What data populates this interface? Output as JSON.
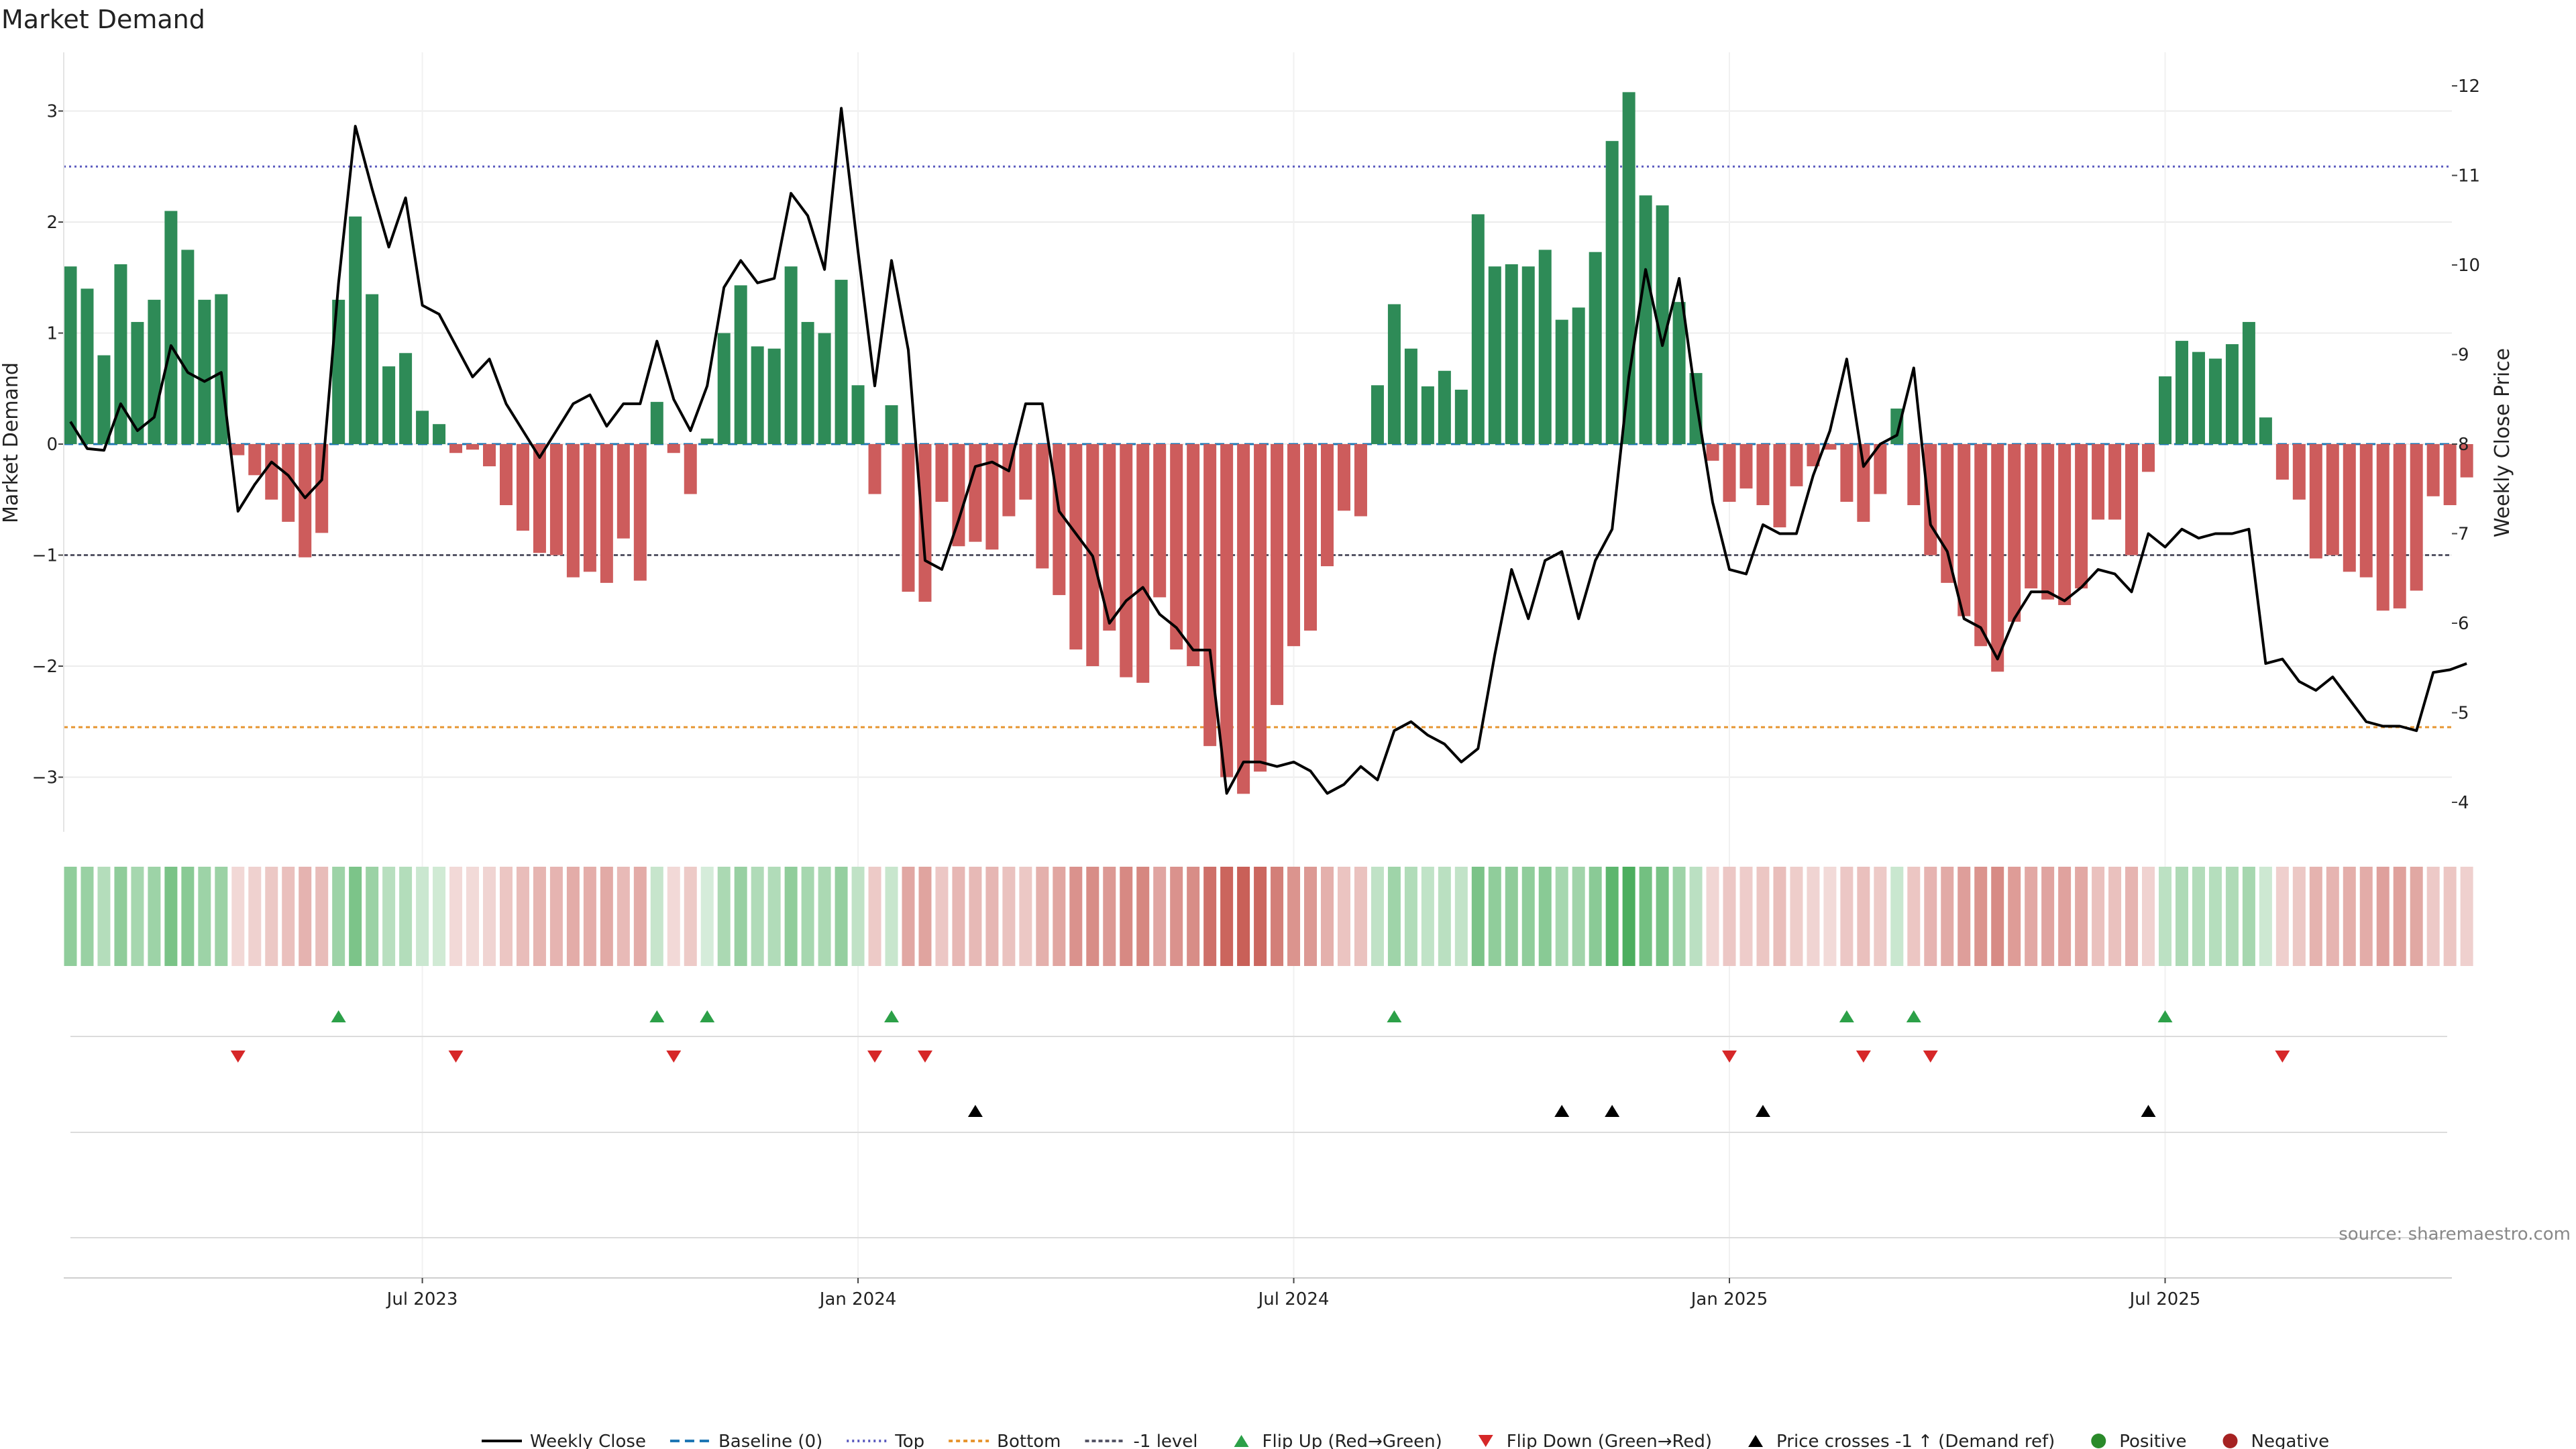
{
  "chart_data": {
    "type": "bar",
    "title": "Market Demand",
    "ylabel": "Market Demand",
    "y2label": "Weekly Close Price",
    "ylim": [
      -3.5,
      3.5
    ],
    "y2lim": [
      3.75,
      12.5
    ],
    "yticks": [
      -3,
      -2,
      -1,
      0,
      1,
      2,
      3
    ],
    "y2ticks": [
      4,
      5,
      6,
      7,
      8,
      9,
      10,
      11,
      12
    ],
    "y_tick_labels": [
      "−3",
      "−2",
      "−1",
      "0",
      "1",
      "2",
      "3"
    ],
    "y2_tick_labels": [
      "4",
      "5",
      "6",
      "7",
      "8",
      "9",
      "10",
      "11",
      "12"
    ],
    "x_tick_labels": [
      {
        "index": 21,
        "label": "Jul 2023"
      },
      {
        "index": 47,
        "label": "Jan 2024"
      },
      {
        "index": 73,
        "label": "Jul 2024"
      },
      {
        "index": 99,
        "label": "Jan 2025"
      },
      {
        "index": 125,
        "label": "Jul 2025"
      }
    ],
    "reference_lines": {
      "top": 2.5,
      "bottom": -2.55,
      "minus_one": -1.0,
      "baseline": 0
    },
    "demand": [
      1.6,
      1.4,
      0.8,
      1.62,
      1.1,
      1.3,
      2.1,
      1.75,
      1.3,
      1.35,
      -0.1,
      -0.28,
      -0.5,
      -0.7,
      -1.02,
      -0.8,
      1.3,
      2.05,
      1.35,
      0.7,
      0.82,
      0.3,
      0.18,
      -0.08,
      -0.05,
      -0.2,
      -0.55,
      -0.78,
      -0.98,
      -1.0,
      -1.2,
      -1.15,
      -1.25,
      -0.85,
      -1.23,
      0.38,
      -0.08,
      -0.45,
      0.05,
      1.0,
      1.43,
      0.88,
      0.86,
      1.6,
      1.1,
      1.0,
      1.48,
      0.53,
      -0.45,
      0.35,
      -1.33,
      -1.42,
      -0.52,
      -0.92,
      -0.88,
      -0.95,
      -0.65,
      -0.5,
      -1.12,
      -1.36,
      -1.85,
      -2.0,
      -1.68,
      -2.1,
      -2.15,
      -1.38,
      -1.85,
      -2.0,
      -2.72,
      -3.0,
      -3.15,
      -2.95,
      -2.35,
      -1.82,
      -1.68,
      -1.1,
      -0.6,
      -0.65,
      0.53,
      1.26,
      0.86,
      0.52,
      0.66,
      0.49,
      2.07,
      1.6,
      1.62,
      1.6,
      1.75,
      1.12,
      1.23,
      1.73,
      2.73,
      3.17,
      2.24,
      2.15,
      1.28,
      0.64,
      -0.15,
      -0.52,
      -0.4,
      -0.55,
      -0.75,
      -0.38,
      -0.2,
      -0.05,
      -0.52,
      -0.7,
      -0.45,
      0.32,
      -0.55,
      -1.0,
      -1.25,
      -1.55,
      -1.82,
      -2.05,
      -1.6,
      -1.3,
      -1.4,
      -1.45,
      -1.3,
      -0.68,
      -0.68,
      -1.0,
      -0.25,
      0.61,
      0.93,
      0.83,
      0.77,
      0.9,
      1.1,
      0.24,
      -0.32,
      -0.5,
      -1.03,
      -1.0,
      -1.15,
      -1.2,
      -1.5,
      -1.48,
      -1.32,
      -0.47,
      -0.55,
      -0.3
    ],
    "close": [
      8.25,
      7.95,
      7.93,
      8.45,
      8.15,
      8.3,
      9.1,
      8.8,
      8.7,
      8.8,
      7.25,
      7.55,
      7.8,
      7.65,
      7.4,
      7.6,
      9.8,
      11.55,
      10.85,
      10.2,
      10.75,
      9.55,
      9.45,
      9.1,
      8.75,
      8.95,
      8.45,
      8.15,
      7.85,
      8.15,
      8.45,
      8.55,
      8.2,
      8.45,
      8.45,
      9.15,
      8.5,
      8.15,
      8.65,
      9.75,
      10.05,
      9.8,
      9.85,
      10.8,
      10.55,
      9.95,
      11.75,
      10.15,
      8.65,
      10.05,
      9.05,
      6.7,
      6.6,
      7.15,
      7.75,
      7.8,
      7.7,
      8.45,
      8.45,
      7.25,
      7.0,
      6.75,
      6.0,
      6.25,
      6.4,
      6.1,
      5.95,
      5.7,
      5.7,
      4.1,
      4.45,
      4.45,
      4.4,
      4.45,
      4.35,
      4.1,
      4.2,
      4.4,
      4.25,
      4.8,
      4.9,
      4.75,
      4.65,
      4.45,
      4.6,
      5.65,
      6.6,
      6.05,
      6.7,
      6.8,
      6.05,
      6.7,
      7.05,
      8.75,
      9.95,
      9.1,
      9.85,
      8.5,
      7.35,
      6.6,
      6.55,
      7.1,
      7.0,
      7.0,
      7.65,
      8.15,
      8.95,
      7.75,
      8.0,
      8.1,
      8.85,
      7.1,
      6.8,
      6.05,
      5.95,
      5.6,
      6.05,
      6.35,
      6.35,
      6.25,
      6.4,
      6.6,
      6.55,
      6.35,
      7.0,
      6.85,
      7.05,
      6.95,
      7.0,
      7.0,
      7.05,
      5.55,
      5.6,
      5.35,
      5.25,
      5.4,
      5.15,
      4.9,
      4.85,
      4.85,
      4.8,
      5.45,
      5.48,
      5.55
    ],
    "flip_up": [
      16,
      35,
      38,
      49,
      79,
      106,
      110,
      125
    ],
    "flip_down": [
      10,
      23,
      36,
      48,
      51,
      99,
      107,
      111,
      132
    ],
    "price_cross": [
      54,
      89,
      92,
      101,
      124
    ],
    "source": "source: sharemaestro.com",
    "legend": [
      {
        "key": "close",
        "label": "Weekly Close",
        "color": "#000000"
      },
      {
        "key": "baseline",
        "label": "Baseline (0)",
        "color": "#1f77b4"
      },
      {
        "key": "top",
        "label": "Top",
        "color": "#5c5cbf"
      },
      {
        "key": "bottom",
        "label": "Bottom",
        "color": "#e69530"
      },
      {
        "key": "minus_one",
        "label": "-1 level",
        "color": "#555566"
      },
      {
        "key": "flip_up",
        "label": "Flip Up (Red→Green)",
        "color": "#2ca048"
      },
      {
        "key": "flip_down",
        "label": "Flip Down (Green→Red)",
        "color": "#d62728"
      },
      {
        "key": "price_cross",
        "label": "Price crosses -1 ↑ (Demand ref)",
        "color": "#000000"
      },
      {
        "key": "positive",
        "label": "Positive",
        "color": "#2a8a2a"
      },
      {
        "key": "negative",
        "label": "Negative",
        "color": "#a62222"
      }
    ],
    "colors": {
      "positive_bar": "#2e8b57",
      "negative_bar": "#cd5c5c",
      "heat_positive": "#4cae5e",
      "heat_negative": "#c96058"
    }
  }
}
